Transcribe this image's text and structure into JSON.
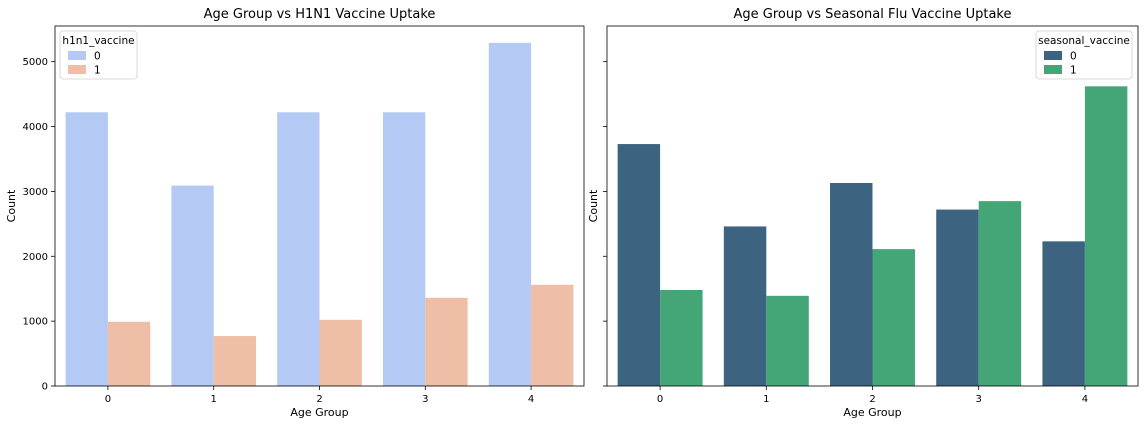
{
  "chart_data": [
    {
      "type": "bar",
      "title": "Age Group vs H1N1 Vaccine Uptake",
      "xlabel": "Age Group",
      "ylabel": "Count",
      "categories": [
        "0",
        "1",
        "2",
        "3",
        "4"
      ],
      "ylim": [
        0,
        5550
      ],
      "yticks": [
        0,
        1000,
        2000,
        3000,
        4000,
        5000
      ],
      "grid": false,
      "legend": {
        "title": "h1n1_vaccine",
        "placement": "top-left"
      },
      "series": [
        {
          "name": "0",
          "color": "#b4c9f4",
          "values": [
            4220,
            3090,
            4220,
            4220,
            5290
          ]
        },
        {
          "name": "1",
          "color": "#eebfa6",
          "values": [
            990,
            770,
            1020,
            1360,
            1560
          ]
        }
      ]
    },
    {
      "type": "bar",
      "title": "Age Group vs Seasonal Flu Vaccine Uptake",
      "xlabel": "Age Group",
      "ylabel": "Count",
      "categories": [
        "0",
        "1",
        "2",
        "3",
        "4"
      ],
      "ylim": [
        0,
        5550
      ],
      "yticks": [
        0,
        1000,
        2000,
        3000,
        4000,
        5000
      ],
      "grid": false,
      "legend": {
        "title": "seasonal_vaccine",
        "placement": "top-right"
      },
      "series": [
        {
          "name": "0",
          "color": "#3c6481",
          "values": [
            3730,
            2460,
            3130,
            2720,
            2230
          ]
        },
        {
          "name": "1",
          "color": "#44a676",
          "values": [
            1480,
            1390,
            2110,
            2850,
            4620
          ]
        }
      ]
    }
  ]
}
